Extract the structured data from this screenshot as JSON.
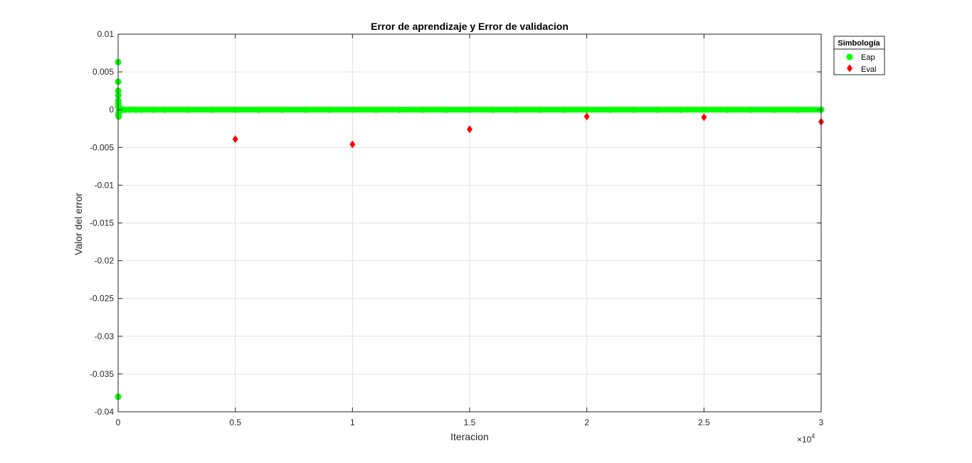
{
  "chart_data": {
    "type": "scatter",
    "title": "Error de aprendizaje y Error de validacion",
    "xlabel": "Iteracion",
    "ylabel": "Valor del error",
    "x_exponent_label": "×10",
    "x_exponent_power": "4",
    "xlim": [
      0,
      30000
    ],
    "ylim": [
      -0.04,
      0.01
    ],
    "x_ticks": [
      0,
      5000,
      10000,
      15000,
      20000,
      25000,
      30000
    ],
    "x_tick_labels": [
      "0",
      "0.5",
      "1",
      "1.5",
      "2",
      "2.5",
      "3"
    ],
    "y_ticks": [
      -0.04,
      -0.035,
      -0.03,
      -0.025,
      -0.02,
      -0.015,
      -0.01,
      -0.005,
      0,
      0.005,
      0.01
    ],
    "y_tick_labels": [
      "-0.04",
      "-0.035",
      "-0.03",
      "-0.025",
      "-0.02",
      "-0.015",
      "-0.01",
      "-0.005",
      "0",
      "0.005",
      "0.01"
    ],
    "grid": true,
    "legend": {
      "title": "Simbología",
      "placement": "outside-top-right"
    },
    "series": [
      {
        "name": "Eap",
        "marker": "circle",
        "color": "#00ff00",
        "x": [
          1,
          2,
          3,
          4,
          5,
          6,
          8,
          10,
          12,
          15,
          20,
          25,
          30,
          40,
          50,
          60,
          80,
          100,
          150,
          200,
          300,
          500,
          750,
          1000,
          1500,
          2000,
          3000,
          4000,
          5000,
          6000,
          7000,
          8000,
          9000,
          10000,
          11000,
          12000,
          13000,
          14000,
          15000,
          16000,
          17000,
          18000,
          19000,
          20000,
          21000,
          22000,
          23000,
          24000,
          25000,
          26000,
          27000,
          28000,
          29000,
          30000
        ],
        "y": [
          -0.038,
          0.0063,
          0.0037,
          0.0025,
          0.0019,
          0.0012,
          0.0008,
          -0.0007,
          0.0005,
          -0.0005,
          0.0003,
          -0.0009,
          -0.0003,
          0.0002,
          -0.0002,
          0.0001,
          -0.0001,
          0.0001,
          0,
          0,
          0,
          0,
          0,
          0,
          0,
          0,
          0,
          0,
          0,
          0,
          0,
          0,
          0,
          0,
          0,
          0,
          0,
          0,
          0,
          0,
          0,
          0,
          0,
          0,
          0,
          0,
          0,
          0,
          0,
          0,
          0,
          0,
          0,
          0
        ]
      },
      {
        "name": "Eval",
        "marker": "diamond",
        "color": "#ff0000",
        "x": [
          5000,
          10000,
          15000,
          20000,
          25000,
          30000
        ],
        "y": [
          -0.0039,
          -0.0046,
          -0.0026,
          -0.0009,
          -0.001,
          -0.0016
        ]
      }
    ]
  },
  "colors": {
    "grid": "#e0e0e0",
    "axis": "#262626",
    "background": "#ffffff"
  }
}
